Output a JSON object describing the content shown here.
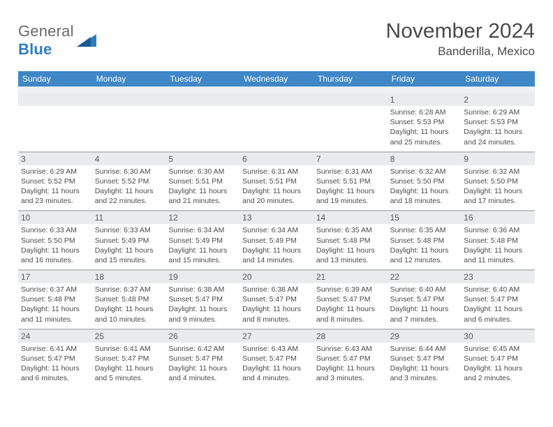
{
  "logo": {
    "text_general": "General",
    "text_blue": "Blue"
  },
  "title": "November 2024",
  "location": "Banderilla, Mexico",
  "colors": {
    "header_bar": "#3f87c7",
    "daynum_bg": "#e9ebec",
    "divider": "#c9cbcc",
    "logo_blue": "#2f7cc1",
    "text": "#4a4a4a"
  },
  "day_names": [
    "Sunday",
    "Monday",
    "Tuesday",
    "Wednesday",
    "Thursday",
    "Friday",
    "Saturday"
  ],
  "weeks": [
    [
      {
        "n": "",
        "sr": "",
        "ss": "",
        "dl": ""
      },
      {
        "n": "",
        "sr": "",
        "ss": "",
        "dl": ""
      },
      {
        "n": "",
        "sr": "",
        "ss": "",
        "dl": ""
      },
      {
        "n": "",
        "sr": "",
        "ss": "",
        "dl": ""
      },
      {
        "n": "",
        "sr": "",
        "ss": "",
        "dl": ""
      },
      {
        "n": "1",
        "sr": "Sunrise: 6:28 AM",
        "ss": "Sunset: 5:53 PM",
        "dl": "Daylight: 11 hours and 25 minutes."
      },
      {
        "n": "2",
        "sr": "Sunrise: 6:29 AM",
        "ss": "Sunset: 5:53 PM",
        "dl": "Daylight: 11 hours and 24 minutes."
      }
    ],
    [
      {
        "n": "3",
        "sr": "Sunrise: 6:29 AM",
        "ss": "Sunset: 5:52 PM",
        "dl": "Daylight: 11 hours and 23 minutes."
      },
      {
        "n": "4",
        "sr": "Sunrise: 6:30 AM",
        "ss": "Sunset: 5:52 PM",
        "dl": "Daylight: 11 hours and 22 minutes."
      },
      {
        "n": "5",
        "sr": "Sunrise: 6:30 AM",
        "ss": "Sunset: 5:51 PM",
        "dl": "Daylight: 11 hours and 21 minutes."
      },
      {
        "n": "6",
        "sr": "Sunrise: 6:31 AM",
        "ss": "Sunset: 5:51 PM",
        "dl": "Daylight: 11 hours and 20 minutes."
      },
      {
        "n": "7",
        "sr": "Sunrise: 6:31 AM",
        "ss": "Sunset: 5:51 PM",
        "dl": "Daylight: 11 hours and 19 minutes."
      },
      {
        "n": "8",
        "sr": "Sunrise: 6:32 AM",
        "ss": "Sunset: 5:50 PM",
        "dl": "Daylight: 11 hours and 18 minutes."
      },
      {
        "n": "9",
        "sr": "Sunrise: 6:32 AM",
        "ss": "Sunset: 5:50 PM",
        "dl": "Daylight: 11 hours and 17 minutes."
      }
    ],
    [
      {
        "n": "10",
        "sr": "Sunrise: 6:33 AM",
        "ss": "Sunset: 5:50 PM",
        "dl": "Daylight: 11 hours and 16 minutes."
      },
      {
        "n": "11",
        "sr": "Sunrise: 6:33 AM",
        "ss": "Sunset: 5:49 PM",
        "dl": "Daylight: 11 hours and 15 minutes."
      },
      {
        "n": "12",
        "sr": "Sunrise: 6:34 AM",
        "ss": "Sunset: 5:49 PM",
        "dl": "Daylight: 11 hours and 15 minutes."
      },
      {
        "n": "13",
        "sr": "Sunrise: 6:34 AM",
        "ss": "Sunset: 5:49 PM",
        "dl": "Daylight: 11 hours and 14 minutes."
      },
      {
        "n": "14",
        "sr": "Sunrise: 6:35 AM",
        "ss": "Sunset: 5:48 PM",
        "dl": "Daylight: 11 hours and 13 minutes."
      },
      {
        "n": "15",
        "sr": "Sunrise: 6:35 AM",
        "ss": "Sunset: 5:48 PM",
        "dl": "Daylight: 11 hours and 12 minutes."
      },
      {
        "n": "16",
        "sr": "Sunrise: 6:36 AM",
        "ss": "Sunset: 5:48 PM",
        "dl": "Daylight: 11 hours and 11 minutes."
      }
    ],
    [
      {
        "n": "17",
        "sr": "Sunrise: 6:37 AM",
        "ss": "Sunset: 5:48 PM",
        "dl": "Daylight: 11 hours and 11 minutes."
      },
      {
        "n": "18",
        "sr": "Sunrise: 6:37 AM",
        "ss": "Sunset: 5:48 PM",
        "dl": "Daylight: 11 hours and 10 minutes."
      },
      {
        "n": "19",
        "sr": "Sunrise: 6:38 AM",
        "ss": "Sunset: 5:47 PM",
        "dl": "Daylight: 11 hours and 9 minutes."
      },
      {
        "n": "20",
        "sr": "Sunrise: 6:38 AM",
        "ss": "Sunset: 5:47 PM",
        "dl": "Daylight: 11 hours and 8 minutes."
      },
      {
        "n": "21",
        "sr": "Sunrise: 6:39 AM",
        "ss": "Sunset: 5:47 PM",
        "dl": "Daylight: 11 hours and 8 minutes."
      },
      {
        "n": "22",
        "sr": "Sunrise: 6:40 AM",
        "ss": "Sunset: 5:47 PM",
        "dl": "Daylight: 11 hours and 7 minutes."
      },
      {
        "n": "23",
        "sr": "Sunrise: 6:40 AM",
        "ss": "Sunset: 5:47 PM",
        "dl": "Daylight: 11 hours and 6 minutes."
      }
    ],
    [
      {
        "n": "24",
        "sr": "Sunrise: 6:41 AM",
        "ss": "Sunset: 5:47 PM",
        "dl": "Daylight: 11 hours and 6 minutes."
      },
      {
        "n": "25",
        "sr": "Sunrise: 6:41 AM",
        "ss": "Sunset: 5:47 PM",
        "dl": "Daylight: 11 hours and 5 minutes."
      },
      {
        "n": "26",
        "sr": "Sunrise: 6:42 AM",
        "ss": "Sunset: 5:47 PM",
        "dl": "Daylight: 11 hours and 4 minutes."
      },
      {
        "n": "27",
        "sr": "Sunrise: 6:43 AM",
        "ss": "Sunset: 5:47 PM",
        "dl": "Daylight: 11 hours and 4 minutes."
      },
      {
        "n": "28",
        "sr": "Sunrise: 6:43 AM",
        "ss": "Sunset: 5:47 PM",
        "dl": "Daylight: 11 hours and 3 minutes."
      },
      {
        "n": "29",
        "sr": "Sunrise: 6:44 AM",
        "ss": "Sunset: 5:47 PM",
        "dl": "Daylight: 11 hours and 3 minutes."
      },
      {
        "n": "30",
        "sr": "Sunrise: 6:45 AM",
        "ss": "Sunset: 5:47 PM",
        "dl": "Daylight: 11 hours and 2 minutes."
      }
    ]
  ]
}
